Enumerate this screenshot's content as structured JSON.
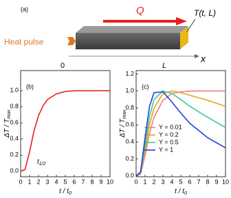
{
  "diagram": {
    "label": "(a)",
    "heat_pulse": "Heat pulse",
    "flux": "Q",
    "temperature": "T(t, L)",
    "origin": "0",
    "length": "L",
    "axis": "x"
  },
  "chart_data": [
    {
      "type": "line",
      "label": "(b)",
      "xlabel": "t / t",
      "xlabel_sub": "0",
      "ylabel": "ΔT / T",
      "ylabel_sub": "max",
      "annotation": "t",
      "annotation_sub": "1/2",
      "color": "#e8201a",
      "x": [
        0,
        0.5,
        1,
        1.5,
        2,
        2.5,
        3,
        4,
        5,
        6,
        8,
        10
      ],
      "values": [
        0,
        0.02,
        0.24,
        0.5,
        0.69,
        0.81,
        0.89,
        0.96,
        0.99,
        1.0,
        1.0,
        1.0
      ],
      "xlim": [
        0,
        10
      ],
      "xticks": [
        0,
        1,
        2,
        3,
        4,
        5,
        6,
        7,
        8,
        9,
        10
      ],
      "ylim": [
        -0.07,
        1.25
      ],
      "yticks": [
        {
          "value": 0,
          "label": "0.0"
        },
        {
          "value": 0.2,
          "label": "0.2"
        },
        {
          "value": 0.4,
          "label": "0.4"
        },
        {
          "value": 0.6,
          "label": "0.6"
        },
        {
          "value": 0.8,
          "label": "0.8"
        },
        {
          "value": 1.0,
          "label": "1.0"
        }
      ]
    },
    {
      "type": "line",
      "label": "(c)",
      "xlabel": "t / t",
      "xlabel_sub": "0",
      "ylabel": "ΔT / T",
      "ylabel_sub": "max",
      "x": [
        0,
        0.5,
        1,
        1.5,
        2,
        3,
        4,
        5,
        6,
        8,
        10
      ],
      "series": [
        {
          "name": "Y = 0.01",
          "color": "#f08080",
          "values": [
            0,
            0.02,
            0.24,
            0.5,
            0.69,
            0.89,
            0.97,
            0.99,
            1.0,
            1.0,
            1.0
          ]
        },
        {
          "name": "Y = 0.2",
          "color": "#e8a020",
          "values": [
            0,
            0.03,
            0.3,
            0.6,
            0.8,
            0.97,
            1.0,
            0.98,
            0.95,
            0.89,
            0.82
          ]
        },
        {
          "name": "Y = 0.5",
          "color": "#30d090",
          "values": [
            0,
            0.04,
            0.36,
            0.7,
            0.9,
            1.0,
            0.97,
            0.9,
            0.82,
            0.69,
            0.57
          ]
        },
        {
          "name": "Y = 1",
          "color": "#2040e0",
          "values": [
            0,
            0.05,
            0.45,
            0.82,
            0.98,
            0.99,
            0.87,
            0.74,
            0.62,
            0.45,
            0.33
          ]
        }
      ],
      "xlim": [
        0,
        10
      ],
      "xticks": [
        0,
        1,
        2,
        3,
        4,
        5,
        6,
        7,
        8,
        9,
        10
      ],
      "ylim": [
        -0.01,
        1.24
      ],
      "yticks": [
        {
          "value": 0,
          "label": "0.0"
        },
        {
          "value": 0.2,
          "label": "0.2"
        },
        {
          "value": 0.4,
          "label": "0.4"
        },
        {
          "value": 0.6,
          "label": "0.6"
        },
        {
          "value": 0.8,
          "label": "0.8"
        },
        {
          "value": 1.0,
          "label": "1.0"
        },
        {
          "value": 1.2,
          "label": "1.2"
        }
      ]
    }
  ]
}
